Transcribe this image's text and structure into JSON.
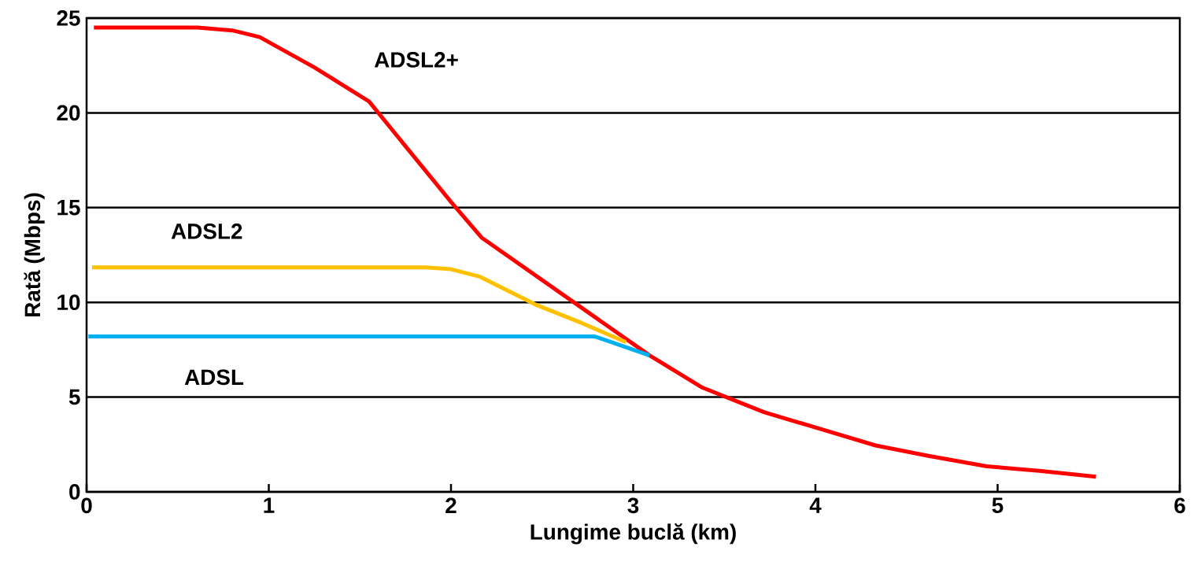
{
  "chart_data": {
    "type": "line",
    "xlabel": "Lungime buclă (km)",
    "ylabel": "Rată (Mbps)",
    "xlim": [
      0,
      6
    ],
    "ylim": [
      0,
      25
    ],
    "xticks": [
      0,
      1,
      2,
      3,
      4,
      5,
      6
    ],
    "yticks": [
      0,
      5,
      10,
      15,
      20,
      25
    ],
    "grid": "y",
    "marker": "none",
    "line_style": "solid",
    "series": [
      {
        "name": "ADSL2+",
        "color": "#ff0000",
        "x": [
          0.04,
          0.61,
          0.8,
          0.95,
          1.25,
          1.55,
          2.0,
          2.17,
          3.09,
          3.38,
          3.72,
          4.0,
          4.33,
          4.62,
          4.94,
          5.24,
          5.54
        ],
        "values": [
          24.5,
          24.5,
          24.35,
          24.0,
          22.4,
          20.6,
          15.3,
          13.4,
          7.2,
          5.5,
          4.2,
          3.4,
          2.45,
          1.9,
          1.35,
          1.1,
          0.8
        ]
      },
      {
        "name": "ADSL2",
        "color": "#ffc000",
        "x": [
          0.03,
          1.86,
          2.0,
          2.16,
          2.46,
          2.72,
          2.96
        ],
        "values": [
          11.85,
          11.85,
          11.75,
          11.35,
          9.9,
          8.9,
          7.9
        ]
      },
      {
        "name": "ADSL",
        "color": "#00b0f0",
        "x": [
          0.01,
          2.79,
          3.09
        ],
        "values": [
          8.2,
          8.2,
          7.2
        ]
      }
    ]
  }
}
